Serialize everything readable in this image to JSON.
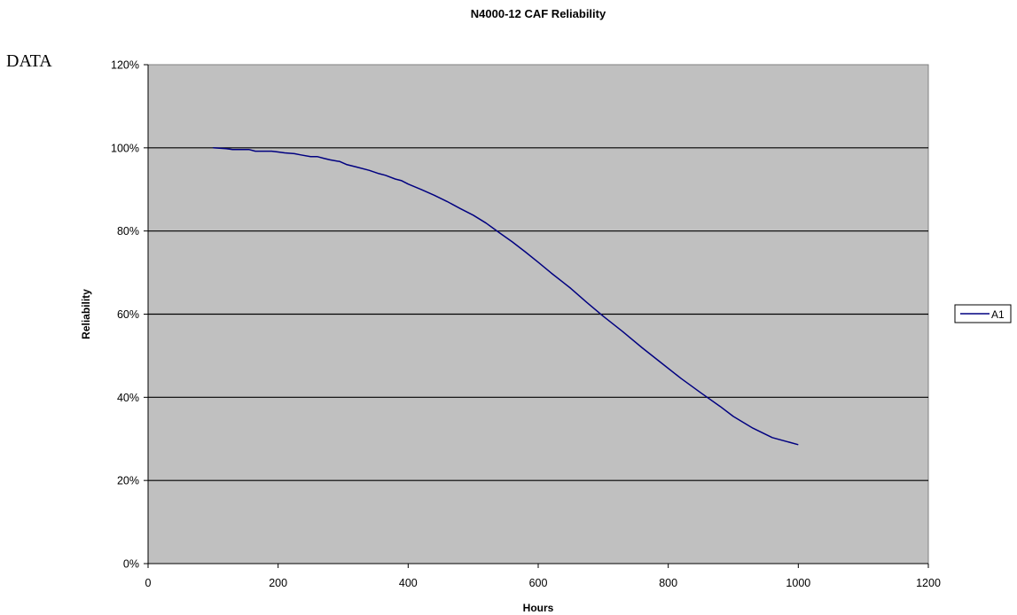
{
  "side_note": "DATA",
  "chart_data": {
    "type": "line",
    "title": "N4000-12 CAF Reliability",
    "xlabel": "Hours",
    "ylabel": "Reliability",
    "xlim": [
      0,
      1200
    ],
    "ylim": [
      0,
      120
    ],
    "x_ticks": [
      0,
      200,
      400,
      600,
      800,
      1000,
      1200
    ],
    "y_ticks": [
      0,
      20,
      40,
      60,
      80,
      100,
      120
    ],
    "y_tick_format": "percent",
    "grid": "horizontal major gridlines",
    "plot_background": "#C0C0C0",
    "legend": {
      "position": "right",
      "entries": [
        "A1"
      ]
    },
    "series": [
      {
        "name": "A1",
        "color": "#000080",
        "x": [
          100,
          120,
          130,
          140,
          155,
          165,
          175,
          190,
          200,
          210,
          225,
          235,
          250,
          260,
          270,
          280,
          295,
          305,
          320,
          340,
          355,
          365,
          380,
          390,
          400,
          420,
          440,
          460,
          480,
          500,
          520,
          540,
          560,
          580,
          600,
          620,
          650,
          675,
          700,
          730,
          760,
          790,
          820,
          850,
          880,
          900,
          930,
          960,
          1000
        ],
        "y": [
          100,
          99.8,
          99.6,
          99.6,
          99.6,
          99.2,
          99.2,
          99.2,
          99.0,
          98.8,
          98.6,
          98.3,
          97.9,
          97.9,
          97.5,
          97.1,
          96.7,
          96.0,
          95.4,
          94.6,
          93.8,
          93.4,
          92.5,
          92.1,
          91.3,
          90.0,
          88.6,
          87.1,
          85.4,
          83.8,
          81.9,
          79.6,
          77.4,
          75.0,
          72.5,
          69.9,
          66.2,
          62.8,
          59.5,
          55.8,
          51.9,
          48.2,
          44.5,
          41.1,
          37.8,
          35.4,
          32.6,
          30.3,
          28.6
        ]
      }
    ]
  }
}
